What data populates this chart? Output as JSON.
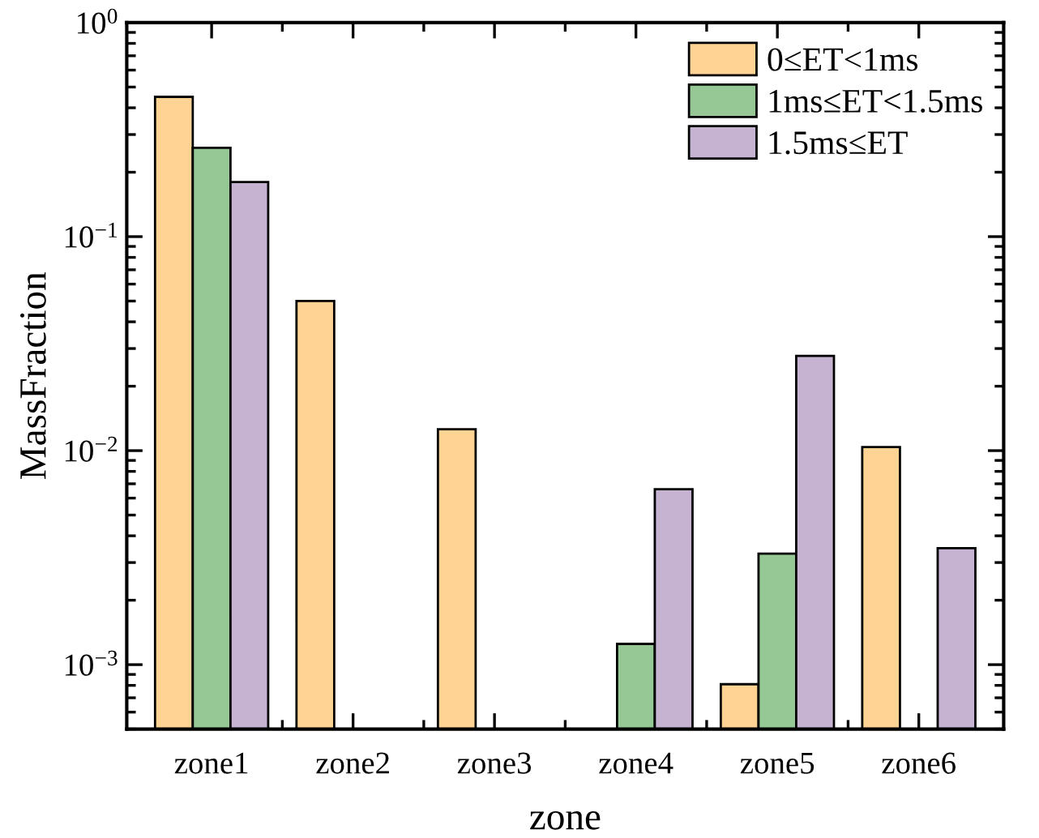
{
  "chart_data": {
    "type": "bar",
    "xlabel": "zone",
    "ylabel": "MassFraction",
    "categories": [
      "zone1",
      "zone2",
      "zone3",
      "zone4",
      "zone5",
      "zone6"
    ],
    "series": [
      {
        "name": "0≤ET<1ms",
        "color": "#ffd394",
        "values": [
          0.45,
          0.05,
          0.0126,
          null,
          0.00081,
          0.0104
        ]
      },
      {
        "name": "1ms≤ET<1.5ms",
        "color": "#96c896",
        "values": [
          0.26,
          null,
          null,
          0.00125,
          0.0033,
          null
        ]
      },
      {
        "name": "1.5ms≤ET",
        "color": "#c5b3d1",
        "values": [
          0.18,
          null,
          null,
          0.0066,
          0.0277,
          0.0035
        ]
      }
    ],
    "log": "y",
    "ylim": [
      0.0005,
      1
    ],
    "yticks": [
      {
        "value": 0.001,
        "label": "10$^{−3}$"
      },
      {
        "value": 0.01,
        "label": "10$^{−2}$"
      },
      {
        "value": 0.1,
        "label": "10$^{−1}$"
      },
      {
        "value": 1,
        "label": "10$^{0}$"
      }
    ],
    "legend": "top right",
    "grid": false
  }
}
